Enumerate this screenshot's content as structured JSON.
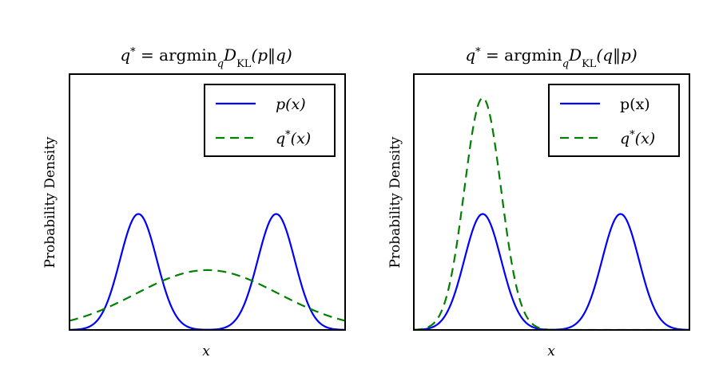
{
  "chart_data": [
    {
      "type": "line",
      "title": "q* = argmin_q D_KL(p‖q)",
      "title_parts": {
        "lhs": "q",
        "sup": "*",
        "eq": " = argmin",
        "sub_q": "q",
        "D": "D",
        "sub_kl": "KL",
        "args": "(p‖q)"
      },
      "xlabel": "x",
      "ylabel": "Probability Density",
      "xlim": [
        -6,
        6
      ],
      "ylim": [
        0,
        0.55
      ],
      "x_ticks_visible": false,
      "y_ticks_visible": false,
      "grid": false,
      "legend_position": "top-right",
      "series": [
        {
          "name": "p(x)",
          "legend_main": "p(x)",
          "legend_sup": "",
          "style": "solid",
          "color": "#0000ff",
          "model": {
            "kind": "gaussian_mixture",
            "components": [
              {
                "mean": -3,
                "sd": 0.8,
                "weight": 0.5
              },
              {
                "mean": 3,
                "sd": 0.8,
                "weight": 0.5
              }
            ]
          }
        },
        {
          "name": "q*(x)",
          "legend_main": "q",
          "legend_after": "(x)",
          "legend_sup": "*",
          "style": "dashed",
          "color": "#007f00",
          "model": {
            "kind": "gaussian",
            "mean": 0,
            "sd": 3.1,
            "amplitude": 1.0
          }
        }
      ]
    },
    {
      "type": "line",
      "title": "q* = argmin_q D_KL(q‖p)",
      "title_parts": {
        "lhs": "q",
        "sup": "*",
        "eq": " = argmin",
        "sub_q": "q",
        "D": "D",
        "sub_kl": "KL",
        "args": "(q‖p)"
      },
      "xlabel": "x",
      "ylabel": "Probability Density",
      "xlim": [
        -6,
        6
      ],
      "ylim": [
        0,
        0.55
      ],
      "x_ticks_visible": false,
      "y_ticks_visible": false,
      "grid": false,
      "legend_position": "top-right",
      "series": [
        {
          "name": "p(x)",
          "legend_main": "p(x)",
          "legend_sup": "",
          "style": "solid",
          "color": "#0000ff",
          "model": {
            "kind": "gaussian_mixture",
            "components": [
              {
                "mean": -3,
                "sd": 0.8,
                "weight": 0.5
              },
              {
                "mean": 3,
                "sd": 0.8,
                "weight": 0.5
              }
            ]
          }
        },
        {
          "name": "q*(x)",
          "legend_main": "q",
          "legend_after": "(x)",
          "legend_sup": "*",
          "style": "dashed",
          "color": "#007f00",
          "model": {
            "kind": "gaussian",
            "mean": -3,
            "sd": 0.8,
            "amplitude": 1.0
          }
        }
      ]
    }
  ]
}
